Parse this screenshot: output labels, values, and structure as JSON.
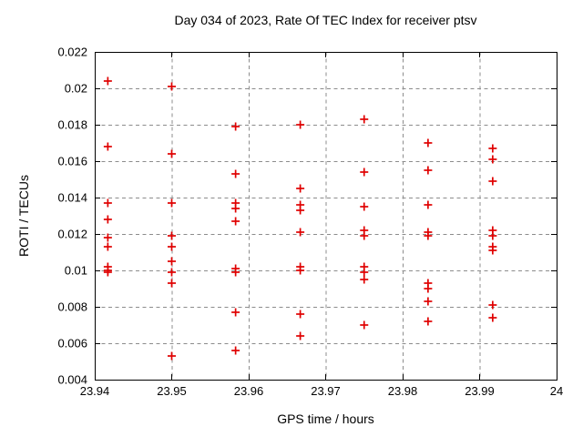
{
  "chart_data": {
    "type": "scatter",
    "title": "Day 034 of 2023, Rate Of TEC Index for receiver ptsv",
    "xlabel": "GPS time / hours",
    "ylabel": "ROTI / TECUs",
    "xlim": [
      23.94,
      24
    ],
    "ylim": [
      0.004,
      0.022
    ],
    "xticks": [
      23.94,
      23.95,
      23.96,
      23.97,
      23.98,
      23.99,
      24
    ],
    "xtick_labels": [
      "23.94",
      "23.95",
      "23.96",
      "23.97",
      "23.98",
      "23.99",
      "24"
    ],
    "yticks": [
      0.004,
      0.006,
      0.008,
      0.01,
      0.012,
      0.014,
      0.016,
      0.018,
      0.02,
      0.022
    ],
    "ytick_labels": [
      "0.004",
      "0.006",
      "0.008",
      "0.01",
      "0.012",
      "0.014",
      "0.016",
      "0.018",
      "0.02",
      "0.022"
    ],
    "grid": true,
    "legend": "none",
    "marker": "plus",
    "marker_color": "#e00000",
    "grid_color": "#8c8c8c",
    "series": [
      {
        "name": "ROTI",
        "points": [
          [
            23.9417,
            0.0204
          ],
          [
            23.9417,
            0.0168
          ],
          [
            23.9417,
            0.0137
          ],
          [
            23.9417,
            0.0128
          ],
          [
            23.9417,
            0.0118
          ],
          [
            23.9417,
            0.0113
          ],
          [
            23.9417,
            0.0102
          ],
          [
            23.9417,
            0.01
          ],
          [
            23.9417,
            0.0099
          ],
          [
            23.95,
            0.0201
          ],
          [
            23.95,
            0.0164
          ],
          [
            23.95,
            0.0137
          ],
          [
            23.95,
            0.0119
          ],
          [
            23.95,
            0.0113
          ],
          [
            23.95,
            0.0105
          ],
          [
            23.95,
            0.0099
          ],
          [
            23.95,
            0.0093
          ],
          [
            23.95,
            0.0053
          ],
          [
            23.9583,
            0.0179
          ],
          [
            23.9583,
            0.0153
          ],
          [
            23.9583,
            0.0137
          ],
          [
            23.9583,
            0.0134
          ],
          [
            23.9583,
            0.0127
          ],
          [
            23.9583,
            0.0101
          ],
          [
            23.9583,
            0.0099
          ],
          [
            23.9583,
            0.0077
          ],
          [
            23.9583,
            0.0056
          ],
          [
            23.9667,
            0.018
          ],
          [
            23.9667,
            0.0145
          ],
          [
            23.9667,
            0.0136
          ],
          [
            23.9667,
            0.0133
          ],
          [
            23.9667,
            0.0121
          ],
          [
            23.9667,
            0.0102
          ],
          [
            23.9667,
            0.01
          ],
          [
            23.9667,
            0.0076
          ],
          [
            23.9667,
            0.0064
          ],
          [
            23.975,
            0.0183
          ],
          [
            23.975,
            0.0154
          ],
          [
            23.975,
            0.0135
          ],
          [
            23.975,
            0.0122
          ],
          [
            23.975,
            0.0119
          ],
          [
            23.975,
            0.0102
          ],
          [
            23.975,
            0.0099
          ],
          [
            23.975,
            0.0095
          ],
          [
            23.975,
            0.007
          ],
          [
            23.9833,
            0.017
          ],
          [
            23.9833,
            0.0155
          ],
          [
            23.9833,
            0.0136
          ],
          [
            23.9833,
            0.0121
          ],
          [
            23.9833,
            0.0119
          ],
          [
            23.9833,
            0.0093
          ],
          [
            23.9833,
            0.009
          ],
          [
            23.9833,
            0.0083
          ],
          [
            23.9833,
            0.0072
          ],
          [
            23.9917,
            0.0167
          ],
          [
            23.9917,
            0.0161
          ],
          [
            23.9917,
            0.0149
          ],
          [
            23.9917,
            0.0122
          ],
          [
            23.9917,
            0.0119
          ],
          [
            23.9917,
            0.0113
          ],
          [
            23.9917,
            0.0111
          ],
          [
            23.9917,
            0.0081
          ],
          [
            23.9917,
            0.0074
          ]
        ]
      }
    ]
  }
}
